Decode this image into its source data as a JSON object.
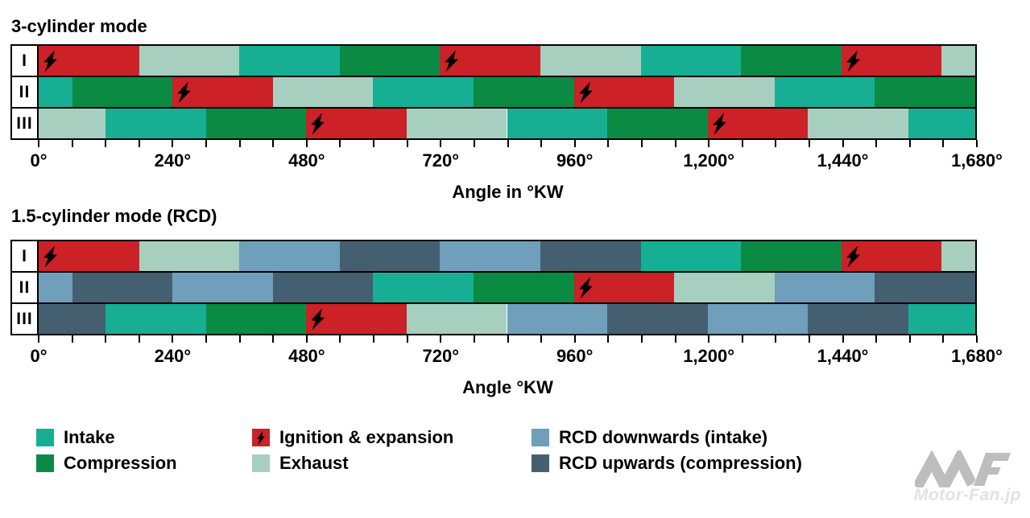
{
  "page": {
    "background": "#ffffff"
  },
  "colors": {
    "intake": "#17af93",
    "compression": "#0b8a43",
    "ignition": "#cb2127",
    "exhaust": "#a6cfc0",
    "rcd_down": "#6f9fba",
    "rcd_up": "#446070",
    "bolt": "#000000",
    "border": "#000000",
    "watermark_logo": "#bdbdbd",
    "watermark_logo_light": "#e9e9e9",
    "watermark_text": "#e2e2e2"
  },
  "chart_data": {
    "type": "timeline",
    "axis": {
      "min": 0,
      "max": 1680,
      "minor_tick_step": 60,
      "major_tick_step": 240,
      "tick_labels": [
        "0°",
        "240°",
        "480°",
        "720°",
        "960°",
        "1,200°",
        "1,440°",
        "1,680°"
      ]
    },
    "charts": [
      {
        "id": "three-cylinder",
        "title": "3-cylinder mode",
        "axis_label": "Angle in °KW",
        "rows": [
          {
            "label": "I",
            "segments": [
              {
                "phase": "ignition",
                "start": 0,
                "end": 180,
                "bolt": true
              },
              {
                "phase": "exhaust",
                "start": 180,
                "end": 360
              },
              {
                "phase": "intake",
                "start": 360,
                "end": 540
              },
              {
                "phase": "compression",
                "start": 540,
                "end": 720
              },
              {
                "phase": "ignition",
                "start": 720,
                "end": 900,
                "bolt": true
              },
              {
                "phase": "exhaust",
                "start": 900,
                "end": 1080
              },
              {
                "phase": "intake",
                "start": 1080,
                "end": 1260
              },
              {
                "phase": "compression",
                "start": 1260,
                "end": 1440
              },
              {
                "phase": "ignition",
                "start": 1440,
                "end": 1620,
                "bolt": true
              },
              {
                "phase": "exhaust",
                "start": 1620,
                "end": 1680
              }
            ]
          },
          {
            "label": "II",
            "segments": [
              {
                "phase": "intake",
                "start": 0,
                "end": 60
              },
              {
                "phase": "compression",
                "start": 60,
                "end": 240
              },
              {
                "phase": "ignition",
                "start": 240,
                "end": 420,
                "bolt": true
              },
              {
                "phase": "exhaust",
                "start": 420,
                "end": 600
              },
              {
                "phase": "intake",
                "start": 600,
                "end": 780
              },
              {
                "phase": "compression",
                "start": 780,
                "end": 960
              },
              {
                "phase": "ignition",
                "start": 960,
                "end": 1140,
                "bolt": true
              },
              {
                "phase": "exhaust",
                "start": 1140,
                "end": 1320
              },
              {
                "phase": "intake",
                "start": 1320,
                "end": 1500
              },
              {
                "phase": "compression",
                "start": 1500,
                "end": 1680
              }
            ]
          },
          {
            "label": "III",
            "segments": [
              {
                "phase": "exhaust",
                "start": 0,
                "end": 120
              },
              {
                "phase": "intake",
                "start": 120,
                "end": 300
              },
              {
                "phase": "compression",
                "start": 300,
                "end": 480
              },
              {
                "phase": "ignition",
                "start": 480,
                "end": 660,
                "bolt": true
              },
              {
                "phase": "exhaust",
                "start": 660,
                "end": 840
              },
              {
                "phase": "intake",
                "start": 840,
                "end": 1020
              },
              {
                "phase": "compression",
                "start": 1020,
                "end": 1200
              },
              {
                "phase": "ignition",
                "start": 1200,
                "end": 1380,
                "bolt": true
              },
              {
                "phase": "exhaust",
                "start": 1380,
                "end": 1560
              },
              {
                "phase": "intake",
                "start": 1560,
                "end": 1680
              }
            ]
          }
        ]
      },
      {
        "id": "rcd",
        "title": "1.5-cylinder mode (RCD)",
        "axis_label": "Angle °KW",
        "rows": [
          {
            "label": "I",
            "segments": [
              {
                "phase": "ignition",
                "start": 0,
                "end": 180,
                "bolt": true
              },
              {
                "phase": "exhaust",
                "start": 180,
                "end": 360
              },
              {
                "phase": "rcd_down",
                "start": 360,
                "end": 540
              },
              {
                "phase": "rcd_up",
                "start": 540,
                "end": 720
              },
              {
                "phase": "rcd_down",
                "start": 720,
                "end": 900
              },
              {
                "phase": "rcd_up",
                "start": 900,
                "end": 1080
              },
              {
                "phase": "intake",
                "start": 1080,
                "end": 1260
              },
              {
                "phase": "compression",
                "start": 1260,
                "end": 1440
              },
              {
                "phase": "ignition",
                "start": 1440,
                "end": 1620,
                "bolt": true
              },
              {
                "phase": "exhaust",
                "start": 1620,
                "end": 1680
              }
            ]
          },
          {
            "label": "II",
            "segments": [
              {
                "phase": "rcd_down",
                "start": 0,
                "end": 60
              },
              {
                "phase": "rcd_up",
                "start": 60,
                "end": 240
              },
              {
                "phase": "rcd_down",
                "start": 240,
                "end": 420
              },
              {
                "phase": "rcd_up",
                "start": 420,
                "end": 600
              },
              {
                "phase": "intake",
                "start": 600,
                "end": 780
              },
              {
                "phase": "compression",
                "start": 780,
                "end": 960
              },
              {
                "phase": "ignition",
                "start": 960,
                "end": 1140,
                "bolt": true
              },
              {
                "phase": "exhaust",
                "start": 1140,
                "end": 1320
              },
              {
                "phase": "rcd_down",
                "start": 1320,
                "end": 1500
              },
              {
                "phase": "rcd_up",
                "start": 1500,
                "end": 1680
              }
            ]
          },
          {
            "label": "III",
            "segments": [
              {
                "phase": "rcd_up",
                "start": 0,
                "end": 120
              },
              {
                "phase": "intake",
                "start": 120,
                "end": 300
              },
              {
                "phase": "compression",
                "start": 300,
                "end": 480
              },
              {
                "phase": "ignition",
                "start": 480,
                "end": 660,
                "bolt": true
              },
              {
                "phase": "exhaust",
                "start": 660,
                "end": 840
              },
              {
                "phase": "rcd_down",
                "start": 840,
                "end": 1020
              },
              {
                "phase": "rcd_up",
                "start": 1020,
                "end": 1200
              },
              {
                "phase": "rcd_down",
                "start": 1200,
                "end": 1380
              },
              {
                "phase": "rcd_up",
                "start": 1380,
                "end": 1560
              },
              {
                "phase": "intake",
                "start": 1560,
                "end": 1680
              }
            ]
          }
        ]
      }
    ]
  },
  "legend": {
    "columns": [
      [
        {
          "key": "intake",
          "label": "Intake"
        },
        {
          "key": "compression",
          "label": "Compression"
        }
      ],
      [
        {
          "key": "ignition",
          "label": "Ignition & expansion",
          "bolt": true
        },
        {
          "key": "exhaust",
          "label": "Exhaust"
        }
      ],
      [
        {
          "key": "rcd_down",
          "label": "RCD downwards (intake)"
        },
        {
          "key": "rcd_up",
          "label": "RCD upwards (compression)"
        }
      ]
    ]
  },
  "watermark": {
    "text": "Motor-Fan.jp"
  }
}
